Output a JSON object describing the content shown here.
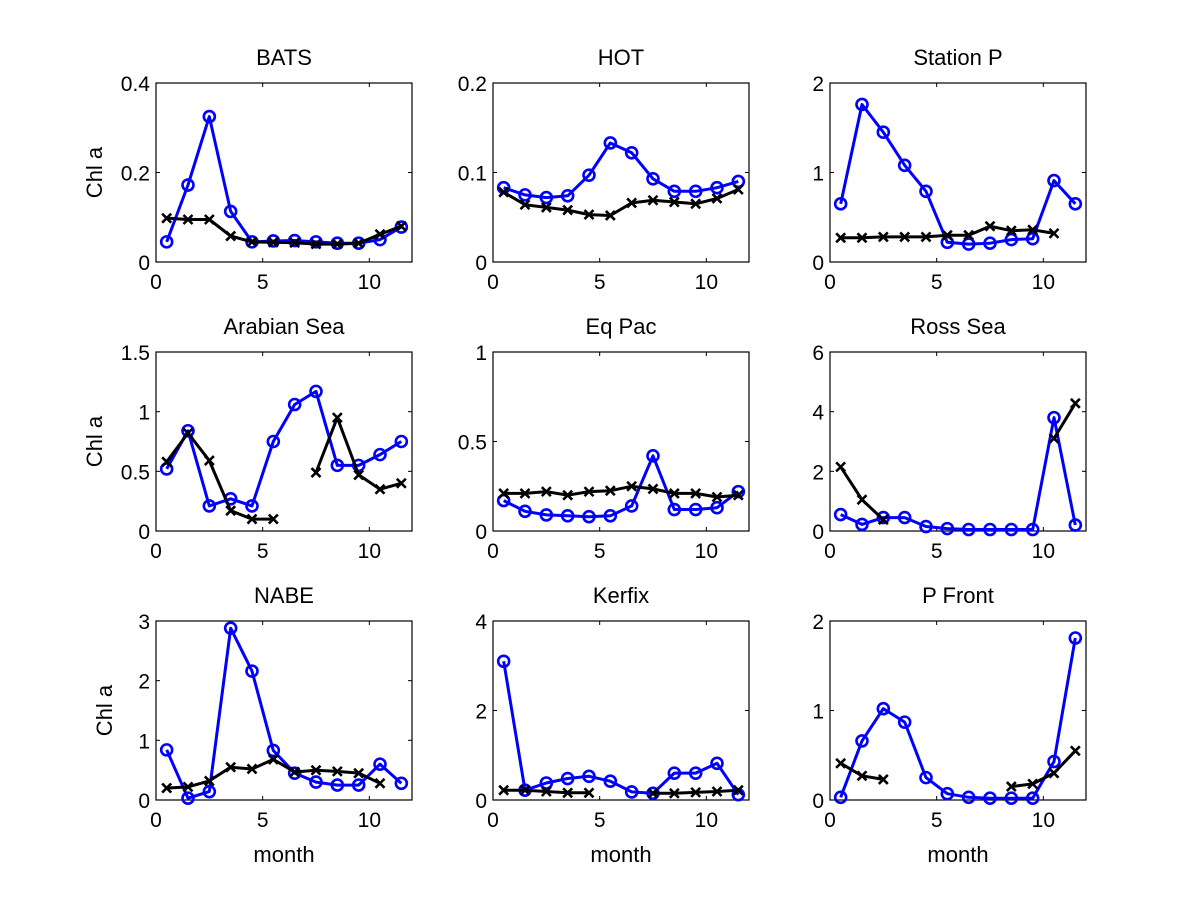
{
  "chart_data": [
    {
      "type": "line",
      "title": "BATS",
      "xlabel": "",
      "ylabel": "Chl a",
      "xlim": [
        0,
        12
      ],
      "ylim": [
        0,
        0.4
      ],
      "xticks": [
        0,
        5,
        10
      ],
      "yticks": [
        0,
        0.2,
        0.4
      ],
      "ytick_labels": [
        "0",
        "0.2",
        "0.4"
      ],
      "grid": false,
      "x": [
        0.5,
        1.5,
        2.5,
        3.5,
        4.5,
        5.5,
        6.5,
        7.5,
        8.5,
        9.5,
        10.5,
        11.5
      ],
      "series": [
        {
          "name": "blue-circles",
          "color": "#0000ff",
          "marker": "o",
          "values": [
            0.045,
            0.172,
            0.325,
            0.113,
            0.045,
            0.047,
            0.048,
            0.045,
            0.042,
            0.042,
            0.05,
            0.078
          ]
        },
        {
          "name": "black-crosses",
          "color": "#000000",
          "marker": "x",
          "values": [
            0.098,
            0.095,
            0.095,
            0.058,
            0.045,
            0.044,
            0.043,
            0.04,
            0.04,
            0.042,
            0.062,
            0.08
          ]
        }
      ]
    },
    {
      "type": "line",
      "title": "HOT",
      "xlabel": "",
      "ylabel": "",
      "xlim": [
        0,
        12
      ],
      "ylim": [
        0,
        0.2
      ],
      "xticks": [
        0,
        5,
        10
      ],
      "yticks": [
        0,
        0.1,
        0.2
      ],
      "ytick_labels": [
        "0",
        "0.1",
        "0.2"
      ],
      "grid": false,
      "x": [
        0.5,
        1.5,
        2.5,
        3.5,
        4.5,
        5.5,
        6.5,
        7.5,
        8.5,
        9.5,
        10.5,
        11.5
      ],
      "series": [
        {
          "name": "blue-circles",
          "color": "#0000ff",
          "marker": "o",
          "values": [
            0.083,
            0.075,
            0.072,
            0.074,
            0.097,
            0.133,
            0.122,
            0.093,
            0.079,
            0.079,
            0.083,
            0.09
          ]
        },
        {
          "name": "black-crosses",
          "color": "#000000",
          "marker": "x",
          "values": [
            0.078,
            0.064,
            0.061,
            0.058,
            0.053,
            0.052,
            0.066,
            0.069,
            0.067,
            0.065,
            0.071,
            0.081
          ]
        }
      ]
    },
    {
      "type": "line",
      "title": "Station P",
      "xlabel": "",
      "ylabel": "",
      "xlim": [
        0,
        12
      ],
      "ylim": [
        0,
        2
      ],
      "xticks": [
        0,
        5,
        10
      ],
      "yticks": [
        0,
        1,
        2
      ],
      "ytick_labels": [
        "0",
        "1",
        "2"
      ],
      "grid": false,
      "x": [
        0.5,
        1.5,
        2.5,
        3.5,
        4.5,
        5.5,
        6.5,
        7.5,
        8.5,
        9.5,
        10.5,
        11.5
      ],
      "series": [
        {
          "name": "blue-circles",
          "color": "#0000ff",
          "marker": "o",
          "values": [
            0.65,
            1.76,
            1.45,
            1.08,
            0.79,
            0.22,
            0.2,
            0.21,
            0.25,
            0.26,
            0.91,
            0.65
          ]
        },
        {
          "name": "black-crosses",
          "color": "#000000",
          "marker": "x",
          "values": [
            0.27,
            0.27,
            0.28,
            0.28,
            0.28,
            0.3,
            0.3,
            0.4,
            0.35,
            0.36,
            0.32,
            null
          ]
        }
      ]
    },
    {
      "type": "line",
      "title": "Arabian Sea",
      "xlabel": "",
      "ylabel": "Chl a",
      "xlim": [
        0,
        12
      ],
      "ylim": [
        0,
        1.5
      ],
      "xticks": [
        0,
        5,
        10
      ],
      "yticks": [
        0,
        0.5,
        1,
        1.5
      ],
      "ytick_labels": [
        "0",
        "0.5",
        "1",
        "1.5"
      ],
      "grid": false,
      "x": [
        0.5,
        1.5,
        2.5,
        3.5,
        4.5,
        5.5,
        6.5,
        7.5,
        8.5,
        9.5,
        10.5,
        11.5
      ],
      "series": [
        {
          "name": "blue-circles",
          "color": "#0000ff",
          "marker": "o",
          "values": [
            0.52,
            0.84,
            0.21,
            0.27,
            0.21,
            0.75,
            1.06,
            1.17,
            0.55,
            0.55,
            0.64,
            0.75
          ]
        },
        {
          "name": "black-crosses",
          "color": "#000000",
          "marker": "x",
          "values": [
            0.58,
            0.82,
            0.59,
            0.17,
            0.1,
            0.1,
            null,
            0.49,
            0.95,
            0.47,
            0.35,
            0.4
          ]
        }
      ]
    },
    {
      "type": "line",
      "title": "Eq Pac",
      "xlabel": "",
      "ylabel": "",
      "xlim": [
        0,
        12
      ],
      "ylim": [
        0,
        1
      ],
      "xticks": [
        0,
        5,
        10
      ],
      "yticks": [
        0,
        0.5,
        1
      ],
      "ytick_labels": [
        "0",
        "0.5",
        "1"
      ],
      "grid": false,
      "x": [
        0.5,
        1.5,
        2.5,
        3.5,
        4.5,
        5.5,
        6.5,
        7.5,
        8.5,
        9.5,
        10.5,
        11.5
      ],
      "series": [
        {
          "name": "blue-circles",
          "color": "#0000ff",
          "marker": "o",
          "values": [
            0.17,
            0.11,
            0.09,
            0.085,
            0.08,
            0.085,
            0.14,
            0.42,
            0.12,
            0.12,
            0.13,
            0.22
          ]
        },
        {
          "name": "black-crosses",
          "color": "#000000",
          "marker": "x",
          "values": [
            0.21,
            0.21,
            0.22,
            0.2,
            0.22,
            0.225,
            0.25,
            0.235,
            0.21,
            0.21,
            0.19,
            0.2
          ]
        }
      ]
    },
    {
      "type": "line",
      "title": "Ross Sea",
      "xlabel": "",
      "ylabel": "",
      "xlim": [
        0,
        12
      ],
      "ylim": [
        0,
        6
      ],
      "xticks": [
        0,
        5,
        10
      ],
      "yticks": [
        0,
        2,
        4,
        6
      ],
      "ytick_labels": [
        "0",
        "2",
        "4",
        "6"
      ],
      "grid": false,
      "x": [
        0.5,
        1.5,
        2.5,
        3.5,
        4.5,
        5.5,
        6.5,
        7.5,
        8.5,
        9.5,
        10.5,
        11.5
      ],
      "series": [
        {
          "name": "blue-circles",
          "color": "#0000ff",
          "marker": "o",
          "values": [
            0.55,
            0.22,
            0.45,
            0.45,
            0.15,
            0.08,
            0.05,
            0.05,
            0.05,
            0.05,
            3.8,
            0.2
          ]
        },
        {
          "name": "black-crosses",
          "color": "#000000",
          "marker": "x",
          "values": [
            2.15,
            1.05,
            0.38,
            null,
            null,
            null,
            null,
            null,
            null,
            null,
            3.1,
            4.28
          ]
        }
      ]
    },
    {
      "type": "line",
      "title": "NABE",
      "xlabel": "month",
      "ylabel": "Chl a",
      "xlim": [
        0,
        12
      ],
      "ylim": [
        0,
        3
      ],
      "xticks": [
        0,
        5,
        10
      ],
      "yticks": [
        0,
        1,
        2,
        3
      ],
      "ytick_labels": [
        "0",
        "1",
        "2",
        "3"
      ],
      "grid": false,
      "x": [
        0.5,
        1.5,
        2.5,
        3.5,
        4.5,
        5.5,
        6.5,
        7.5,
        8.5,
        9.5,
        10.5,
        11.5
      ],
      "series": [
        {
          "name": "blue-circles",
          "color": "#0000ff",
          "marker": "o",
          "values": [
            0.84,
            0.03,
            0.14,
            2.88,
            2.16,
            0.83,
            0.45,
            0.3,
            0.25,
            0.25,
            0.6,
            0.28
          ]
        },
        {
          "name": "black-crosses",
          "color": "#000000",
          "marker": "x",
          "values": [
            0.2,
            0.22,
            0.32,
            0.55,
            0.52,
            0.68,
            0.47,
            0.5,
            0.48,
            0.45,
            0.28,
            null
          ]
        }
      ]
    },
    {
      "type": "line",
      "title": "Kerfix",
      "xlabel": "month",
      "ylabel": "",
      "xlim": [
        0,
        12
      ],
      "ylim": [
        0,
        4
      ],
      "xticks": [
        0,
        5,
        10
      ],
      "yticks": [
        0,
        2,
        4
      ],
      "ytick_labels": [
        "0",
        "2",
        "4"
      ],
      "grid": false,
      "x": [
        0.5,
        1.5,
        2.5,
        3.5,
        4.5,
        5.5,
        6.5,
        7.5,
        8.5,
        9.5,
        10.5,
        11.5
      ],
      "series": [
        {
          "name": "blue-circles",
          "color": "#0000ff",
          "marker": "o",
          "values": [
            3.1,
            0.22,
            0.38,
            0.48,
            0.53,
            0.42,
            0.18,
            0.15,
            0.6,
            0.6,
            0.82,
            0.12
          ]
        },
        {
          "name": "black-crosses",
          "color": "#000000",
          "marker": "x",
          "values": [
            0.22,
            0.22,
            0.19,
            0.16,
            0.16,
            null,
            null,
            0.15,
            0.15,
            0.17,
            0.19,
            0.22
          ]
        }
      ]
    },
    {
      "type": "line",
      "title": "P Front",
      "xlabel": "month",
      "ylabel": "",
      "xlim": [
        0,
        12
      ],
      "ylim": [
        0,
        2
      ],
      "xticks": [
        0,
        5,
        10
      ],
      "yticks": [
        0,
        1,
        2
      ],
      "ytick_labels": [
        "0",
        "1",
        "2"
      ],
      "grid": false,
      "x": [
        0.5,
        1.5,
        2.5,
        3.5,
        4.5,
        5.5,
        6.5,
        7.5,
        8.5,
        9.5,
        10.5,
        11.5
      ],
      "series": [
        {
          "name": "blue-circles",
          "color": "#0000ff",
          "marker": "o",
          "values": [
            0.03,
            0.66,
            1.02,
            0.87,
            0.25,
            0.07,
            0.03,
            0.02,
            0.02,
            0.02,
            0.43,
            1.81
          ]
        },
        {
          "name": "black-crosses",
          "color": "#000000",
          "marker": "x",
          "values": [
            0.41,
            0.27,
            0.23,
            null,
            null,
            null,
            null,
            null,
            0.15,
            0.18,
            0.3,
            0.55
          ]
        }
      ]
    }
  ]
}
